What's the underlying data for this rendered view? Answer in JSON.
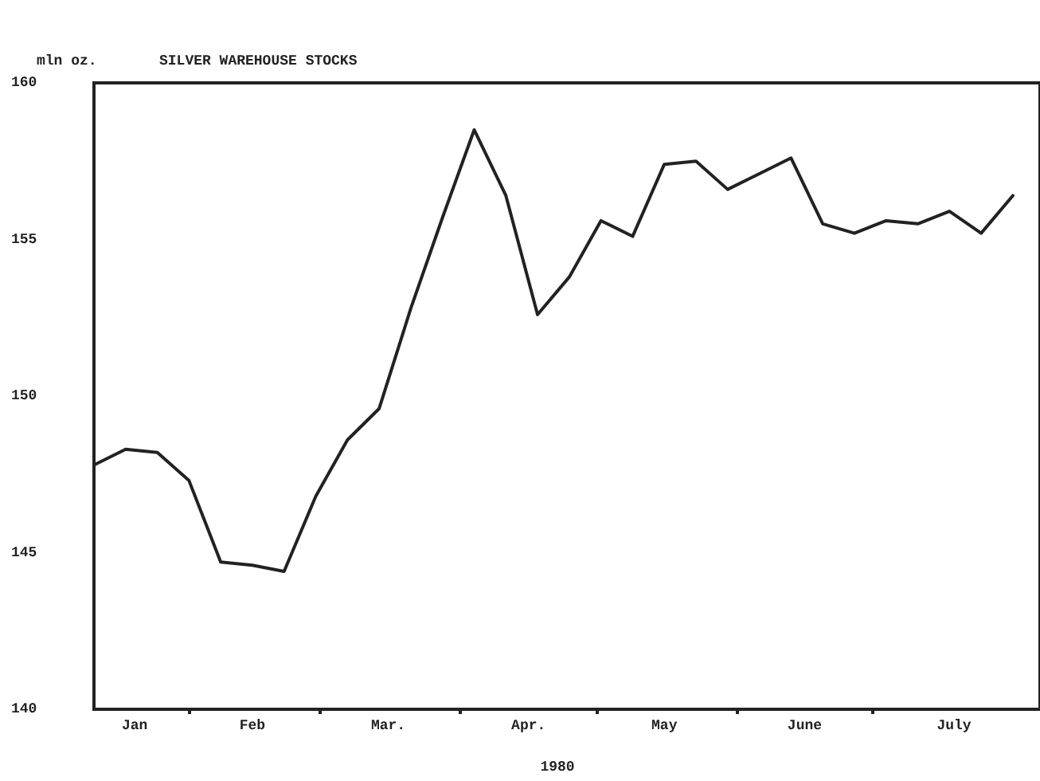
{
  "chart_data": {
    "type": "line",
    "title": "SILVER WAREHOUSE STOCKS",
    "ylabel": "mln oz.",
    "xlabel": "1980",
    "x": [
      "1980-01-11",
      "1980-01-18",
      "1980-01-25",
      "1980-02-01",
      "1980-02-08",
      "1980-02-15",
      "1980-02-22",
      "1980-02-29",
      "1980-03-07",
      "1980-03-14",
      "1980-03-21",
      "1980-03-28",
      "1980-04-04",
      "1980-04-11",
      "1980-04-18",
      "1980-04-25",
      "1980-05-02",
      "1980-05-09",
      "1980-05-16",
      "1980-05-23",
      "1980-05-30",
      "1980-06-06",
      "1980-06-13",
      "1980-06-20",
      "1980-06-27",
      "1980-07-04",
      "1980-07-11",
      "1980-07-18",
      "1980-07-25",
      "1980-08-01"
    ],
    "series": [
      {
        "color": "#222222",
        "values": [
          147.8,
          148.3,
          148.2,
          147.3,
          144.7,
          144.6,
          144.4,
          146.8,
          148.6,
          149.6,
          152.8,
          155.7,
          158.5,
          156.4,
          152.6,
          153.8,
          155.6,
          155.1,
          157.4,
          157.5,
          156.6,
          157.1,
          157.6,
          155.5,
          155.2,
          155.6,
          155.5,
          155.9,
          155.2,
          156.4
        ]
      }
    ],
    "xlim": [
      "1980-01-11",
      "1980-08-07"
    ],
    "xticks": [
      {
        "value": "1980-01-20",
        "label": "Jan"
      },
      {
        "value": "1980-02-01",
        "label": null
      },
      {
        "value": "1980-02-15",
        "label": "Feb"
      },
      {
        "value": "1980-03-01",
        "label": null
      },
      {
        "value": "1980-03-16",
        "label": "Mar."
      },
      {
        "value": "1980-04-01",
        "label": null
      },
      {
        "value": "1980-04-16",
        "label": "Apr."
      },
      {
        "value": "1980-05-01",
        "label": null
      },
      {
        "value": "1980-05-16",
        "label": "May"
      },
      {
        "value": "1980-06-01",
        "label": null
      },
      {
        "value": "1980-06-16",
        "label": "June"
      },
      {
        "value": "1980-07-01",
        "label": null
      },
      {
        "value": "1980-07-19",
        "label": "July"
      }
    ],
    "ylim": [
      140,
      160
    ],
    "yticks": [
      140,
      145,
      150,
      155,
      160
    ],
    "grid": false,
    "marker": "none",
    "line_style": "solid"
  }
}
